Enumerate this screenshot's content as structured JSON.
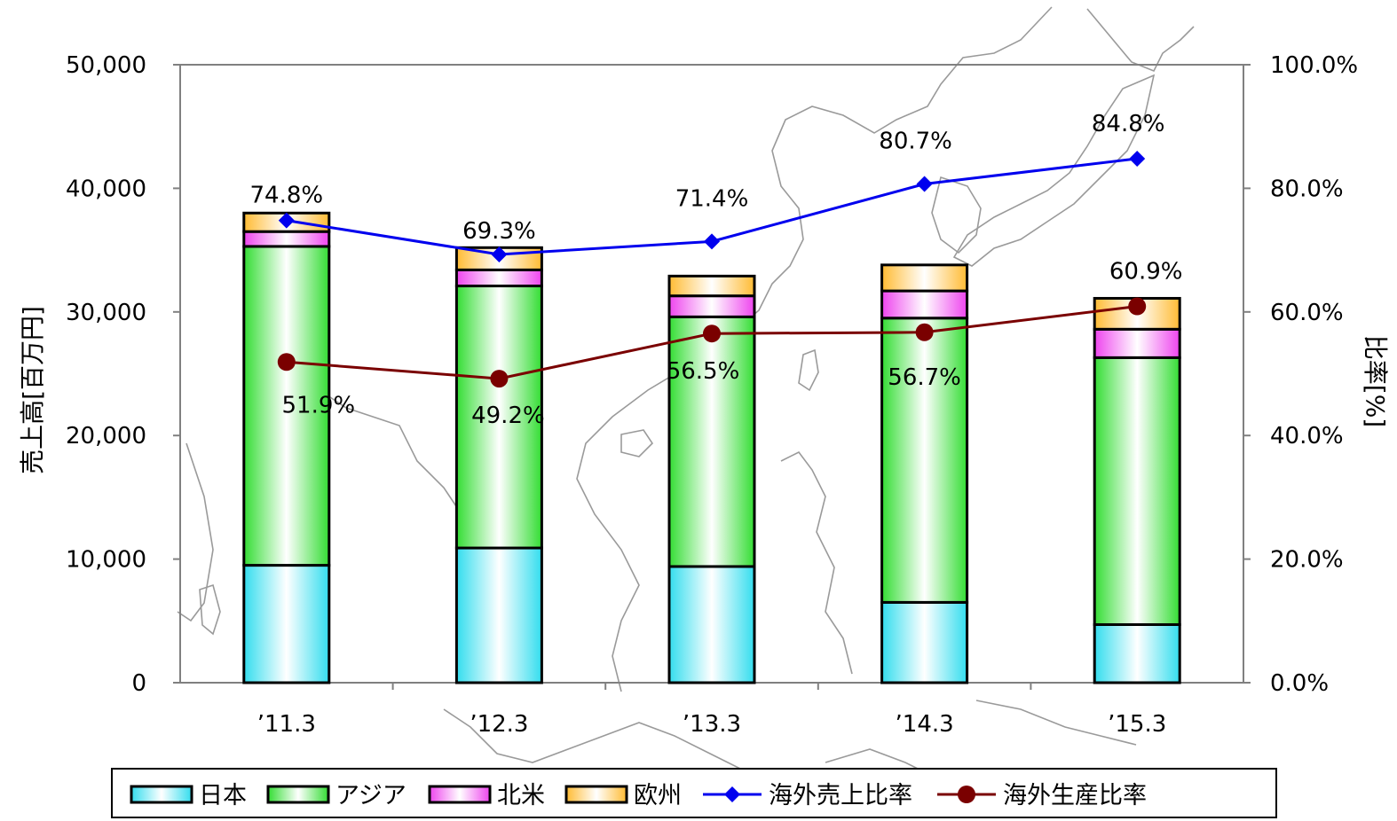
{
  "chart_data": {
    "type": "bar",
    "stacked": true,
    "categories": [
      "’11.3",
      "’12.3",
      "’13.3",
      "’14.3",
      "’15.3"
    ],
    "series": [
      {
        "name": "日本",
        "axis": "left",
        "values": [
          9500,
          10900,
          9400,
          6500,
          4700
        ],
        "color": "#33ddee"
      },
      {
        "name": "アジア",
        "axis": "left",
        "values": [
          25800,
          21200,
          20200,
          23000,
          21600
        ],
        "color": "#33dd33"
      },
      {
        "name": "北米",
        "axis": "left",
        "values": [
          1200,
          1300,
          1700,
          2200,
          2300
        ],
        "color": "#ee44ee"
      },
      {
        "name": "欧州",
        "axis": "left",
        "values": [
          1500,
          1800,
          1600,
          2100,
          2500
        ],
        "color": "#ffbb33"
      }
    ],
    "lines": [
      {
        "name": "海外売上比率",
        "axis": "right",
        "values": [
          74.8,
          69.3,
          71.4,
          80.7,
          84.8
        ],
        "labels": [
          "74.8%",
          "69.3%",
          "71.4%",
          "80.7%",
          "84.8%"
        ],
        "color": "#0000ee",
        "marker": "diamond"
      },
      {
        "name": "海外生産比率",
        "axis": "right",
        "values": [
          51.9,
          49.2,
          56.5,
          56.7,
          60.9
        ],
        "labels": [
          "51.9%",
          "49.2%",
          "56.5%",
          "56.7%",
          "60.9%"
        ],
        "color": "#7a0000",
        "marker": "circle"
      }
    ],
    "ylabel": "売上高[百万円]",
    "y2label": "比率[%]",
    "ylim": [
      0,
      50000
    ],
    "y2lim": [
      0,
      100
    ],
    "yticks": [
      "0",
      "10,000",
      "20,000",
      "30,000",
      "40,000",
      "50,000"
    ],
    "y2ticks": [
      "0.0%",
      "20.0%",
      "40.0%",
      "60.0%",
      "80.0%",
      "100.0%"
    ],
    "legend_position": "bottom",
    "background": "map outline of East and Southeast Asia"
  }
}
